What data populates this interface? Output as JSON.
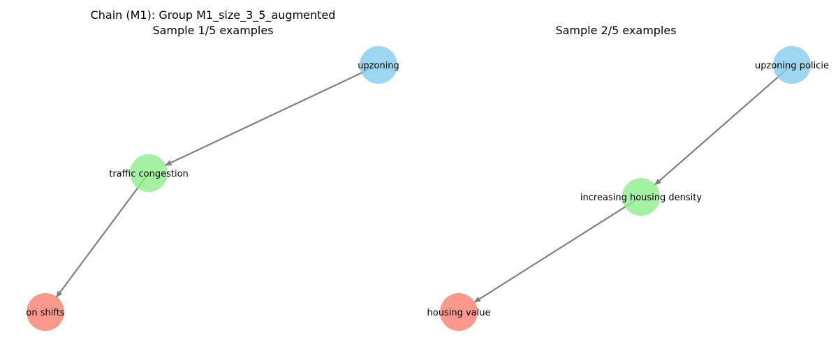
{
  "colors": {
    "cause": "#87CEEB",
    "mediator": "#90EE90",
    "effect": "#FA8072",
    "edge": "#808080"
  },
  "panels": [
    {
      "title_lines": [
        "Chain (M1): Group M1_size_3_5_augmented",
        "Sample 1/5 examples"
      ],
      "nodes": [
        {
          "id": "a",
          "label": "upzoning",
          "role": "cause"
        },
        {
          "id": "b",
          "label": "traffic congestion",
          "role": "mediator"
        },
        {
          "id": "c",
          "label": "on shifts",
          "role": "effect"
        }
      ],
      "edges": [
        {
          "from": "a",
          "to": "b"
        },
        {
          "from": "b",
          "to": "c"
        }
      ]
    },
    {
      "title_lines": [
        "Sample 2/5 examples"
      ],
      "nodes": [
        {
          "id": "a",
          "label": "upzoning policie",
          "role": "cause"
        },
        {
          "id": "b",
          "label": "increasing housing density",
          "role": "mediator"
        },
        {
          "id": "c",
          "label": "housing value",
          "role": "effect"
        }
      ],
      "edges": [
        {
          "from": "a",
          "to": "b"
        },
        {
          "from": "b",
          "to": "c"
        }
      ]
    }
  ]
}
